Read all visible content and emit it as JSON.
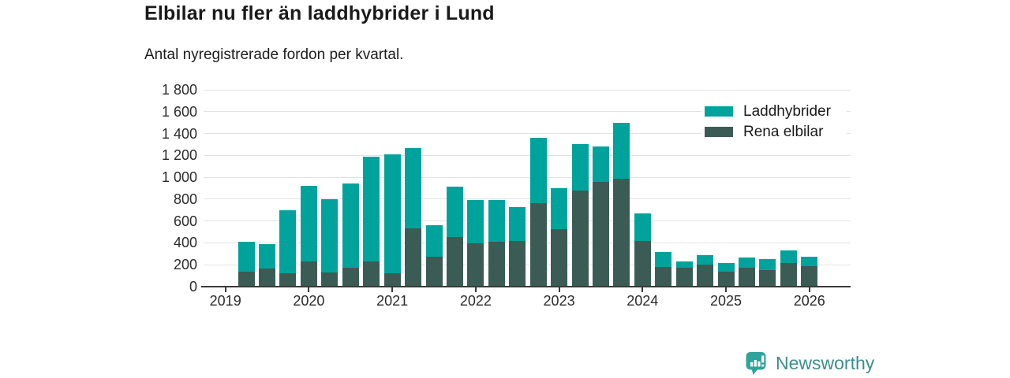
{
  "title": "Elbilar nu fler än laddhybrider i Lund",
  "subtitle": "Antal nyregistrerade fordon per kvartal.",
  "legend": {
    "items": [
      {
        "label": "Laddhybrider",
        "color": "#00a39b"
      },
      {
        "label": "Rena elbilar",
        "color": "#3b5c54"
      }
    ]
  },
  "branding": {
    "label": "Newsworthy",
    "color": "#3a8f8b",
    "icon_color": "#2fa49b"
  },
  "chart_data": {
    "type": "bar",
    "stacked": true,
    "title": "Elbilar nu fler än laddhybrider i Lund",
    "subtitle": "Antal nyregistrerade fordon per kvartal.",
    "xlabel": "",
    "ylabel": "",
    "ylim": [
      0,
      1800
    ],
    "ytick_step": 200,
    "ytick_labels": [
      "0",
      "200",
      "400",
      "600",
      "800",
      "1 000",
      "1 200",
      "1 400",
      "1 600",
      "1 800"
    ],
    "xtick_labels": [
      "2019",
      "2020",
      "2021",
      "2022",
      "2023",
      "2024",
      "2025",
      "2026"
    ],
    "grid": "horizontal",
    "legend_position": "top-right",
    "categories": [
      "2019 Q2",
      "2019 Q3",
      "2019 Q4",
      "2020 Q1",
      "2020 Q2",
      "2020 Q3",
      "2020 Q4",
      "2021 Q1",
      "2021 Q2",
      "2021 Q3",
      "2021 Q4",
      "2022 Q1",
      "2022 Q2",
      "2022 Q3",
      "2022 Q4",
      "2023 Q1",
      "2023 Q2",
      "2023 Q3",
      "2023 Q4",
      "2024 Q1",
      "2024 Q2",
      "2024 Q3",
      "2024 Q4",
      "2025 Q1",
      "2025 Q2",
      "2025 Q3",
      "2025 Q4",
      "2026 Q1"
    ],
    "series": [
      {
        "name": "Rena elbilar",
        "color": "#3b5c54",
        "values": [
          140,
          165,
          120,
          230,
          130,
          170,
          230,
          120,
          530,
          275,
          455,
          395,
          410,
          420,
          760,
          525,
          875,
          955,
          985,
          420,
          180,
          170,
          205,
          140,
          175,
          150,
          215,
          185
        ]
      },
      {
        "name": "Laddhybrider",
        "color": "#00a39b",
        "values": [
          270,
          225,
          580,
          690,
          670,
          775,
          960,
          1090,
          740,
          285,
          460,
          400,
          380,
          305,
          600,
          375,
          425,
          330,
          510,
          250,
          135,
          60,
          80,
          75,
          90,
          100,
          115,
          90
        ]
      }
    ]
  }
}
